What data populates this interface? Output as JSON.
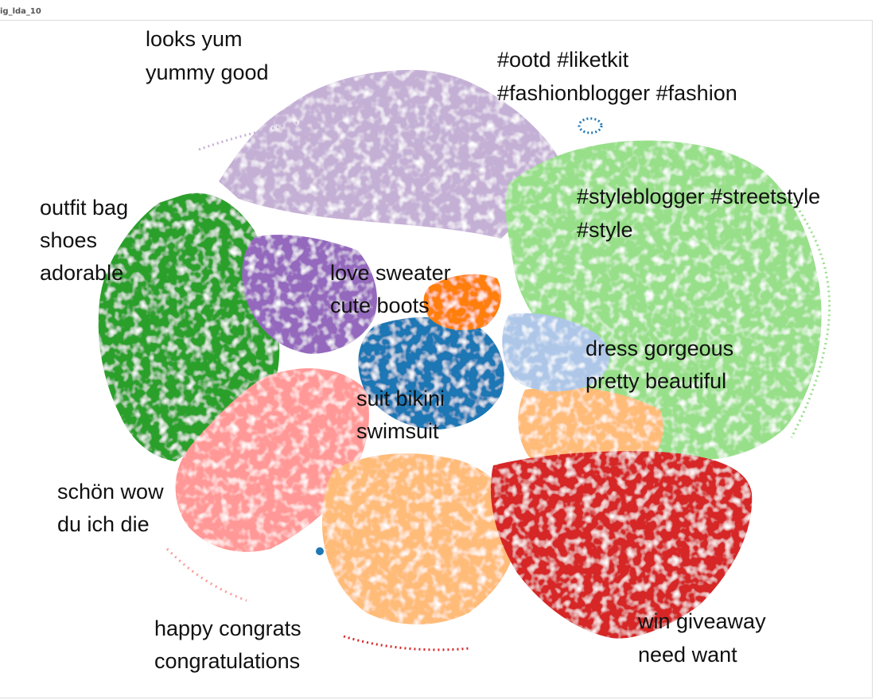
{
  "window": {
    "title": "ig_lda_10"
  },
  "colors": {
    "food": "#c5b0d5",
    "fashion_hashtags": "#1f77b4",
    "style_hashtags": "#98df8a",
    "outfit": "#2ca02c",
    "love_sweater": "#9467bd",
    "cute_boots": "#ff7f0e",
    "dress": "#aec7e8",
    "swimsuit": "#1f77b4",
    "german": "#ff9896",
    "congrats": "#ffbb78",
    "giveaway": "#d62728"
  },
  "chart_data": {
    "type": "scatter",
    "title": "ig_lda_10",
    "grid": false,
    "legend": "none",
    "topics": [
      {
        "id": "food",
        "color": "#c5b0d5",
        "lines": [
          "looks yum",
          "yummy good"
        ]
      },
      {
        "id": "ootd",
        "color": "#1f77b4",
        "lines": [
          "#ootd #liketkit",
          "#fashionblogger #fashion"
        ]
      },
      {
        "id": "styleblogger",
        "color": "#98df8a",
        "lines": [
          "#styleblogger #streetstyle",
          "#style"
        ]
      },
      {
        "id": "outfit",
        "color": "#2ca02c",
        "lines": [
          "outfit bag",
          "shoes",
          "adorable"
        ]
      },
      {
        "id": "love",
        "color": "#9467bd",
        "lines": [
          "love sweater",
          "cute boots"
        ]
      },
      {
        "id": "dress",
        "color": "#aec7e8",
        "lines": [
          "dress gorgeous",
          "pretty beautiful"
        ]
      },
      {
        "id": "swim",
        "color": "#1f77b4",
        "lines": [
          "suit bikini",
          "swimsuit"
        ]
      },
      {
        "id": "german",
        "color": "#ff9896",
        "lines": [
          "schön wow",
          "du ich die"
        ]
      },
      {
        "id": "congrats",
        "color": "#ffbb78",
        "lines": [
          "happy congrats",
          "congratulations"
        ]
      },
      {
        "id": "giveaway",
        "color": "#d62728",
        "lines": [
          "win giveaway",
          "need want"
        ]
      }
    ]
  }
}
